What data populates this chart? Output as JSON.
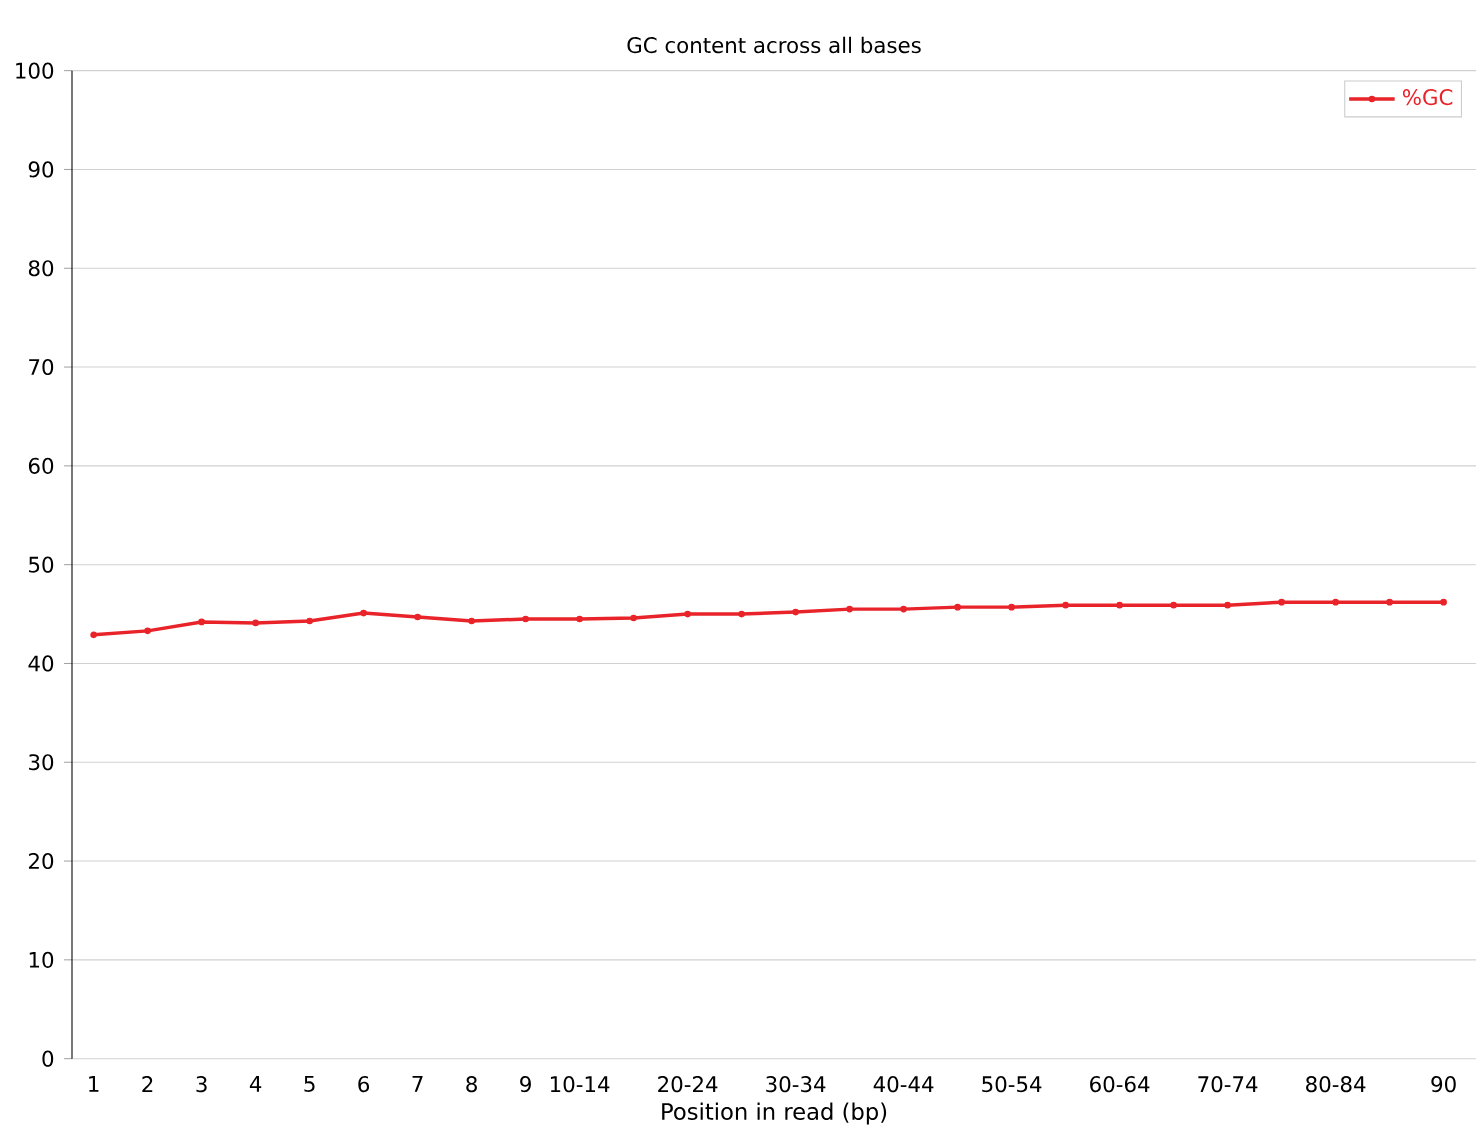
{
  "chart_data": {
    "type": "line",
    "title": "GC content across all bases",
    "xlabel": "Position in read (bp)",
    "categories": [
      "1",
      "2",
      "3",
      "4",
      "5",
      "6",
      "7",
      "8",
      "9",
      "10-14",
      null,
      "20-24",
      null,
      "30-34",
      null,
      "40-44",
      null,
      "50-54",
      null,
      "60-64",
      null,
      "70-74",
      null,
      "80-84",
      null,
      "90"
    ],
    "series": [
      {
        "name": "%GC",
        "color": "#e8242a",
        "values": [
          42.9,
          43.3,
          44.2,
          44.1,
          44.3,
          45.1,
          44.7,
          44.3,
          44.5,
          44.5,
          44.6,
          45.0,
          45.0,
          45.2,
          45.5,
          45.5,
          45.7,
          45.7,
          45.9,
          45.9,
          45.9,
          45.9,
          46.2,
          46.2,
          46.2,
          46.2
        ]
      }
    ],
    "ylim": [
      0,
      100
    ],
    "yticks": [
      0,
      10,
      20,
      30,
      40,
      50,
      60,
      70,
      80,
      90,
      100
    ],
    "grid": "y",
    "marker": "circle",
    "legend": "top right"
  }
}
